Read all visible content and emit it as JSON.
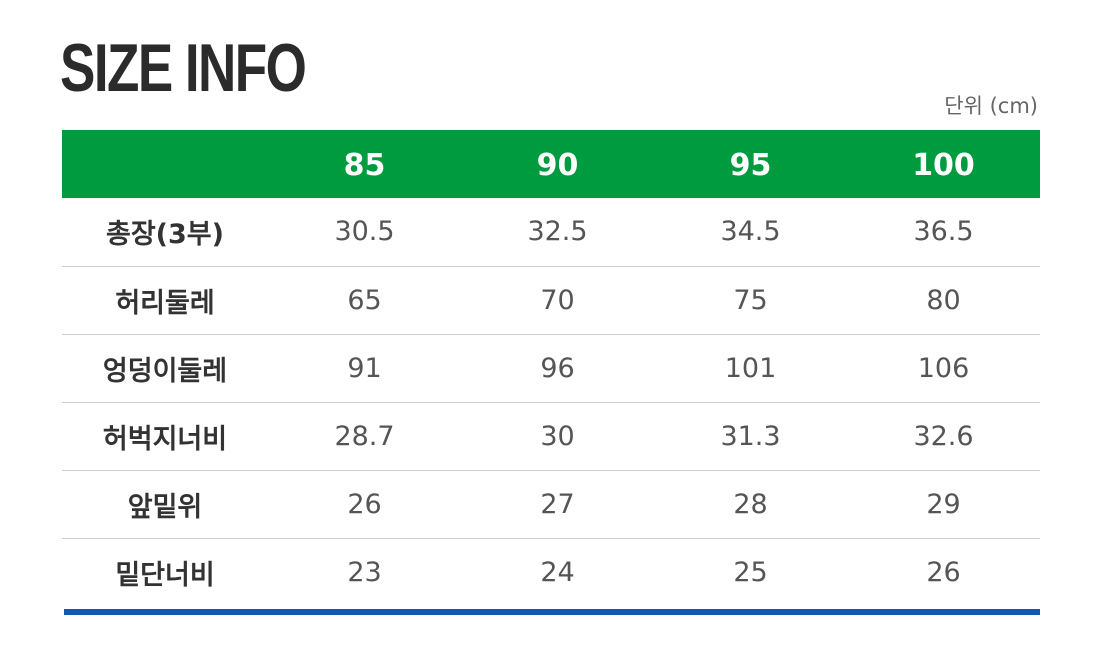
{
  "title": "SIZE INFO",
  "unit_label": "단위 (cm)",
  "colors": {
    "header_bg": "#009b3e",
    "header_text": "#ffffff",
    "bottom_bar": "#1257b0",
    "divider": "#cccccc"
  },
  "table": {
    "header": [
      "",
      "85",
      "90",
      "95",
      "100"
    ],
    "rows": [
      {
        "label": "총장(3부)",
        "values": [
          "30.5",
          "32.5",
          "34.5",
          "36.5"
        ]
      },
      {
        "label": "허리둘레",
        "values": [
          "65",
          "70",
          "75",
          "80"
        ]
      },
      {
        "label": "엉덩이둘레",
        "values": [
          "91",
          "96",
          "101",
          "106"
        ]
      },
      {
        "label": "허벅지너비",
        "values": [
          "28.7",
          "30",
          "31.3",
          "32.6"
        ]
      },
      {
        "label": "앞밑위",
        "values": [
          "26",
          "27",
          "28",
          "29"
        ]
      },
      {
        "label": "밑단너비",
        "values": [
          "23",
          "24",
          "25",
          "26"
        ]
      }
    ]
  }
}
